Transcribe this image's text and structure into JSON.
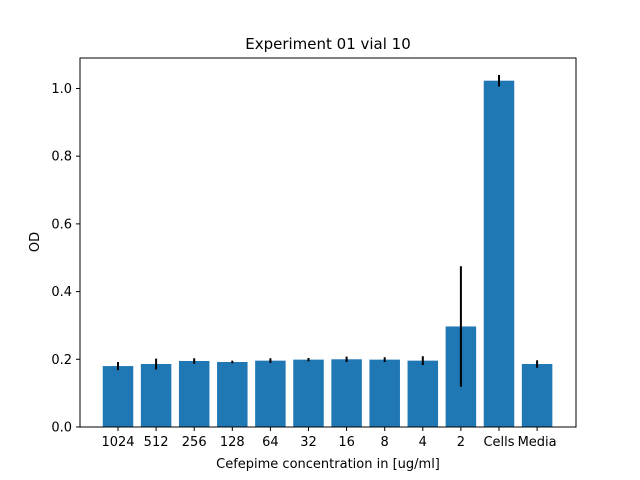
{
  "chart_data": {
    "type": "bar",
    "title": "Experiment 01 vial 10",
    "xlabel": "Cefepime concentration in [ug/ml]",
    "ylabel": "OD",
    "ylim": [
      0,
      1.09
    ],
    "yticks": [
      0.0,
      0.2,
      0.4,
      0.6,
      0.8,
      1.0
    ],
    "ytick_labels": [
      "0.0",
      "0.2",
      "0.4",
      "0.6",
      "0.8",
      "1.0"
    ],
    "categories": [
      "1024",
      "512",
      "256",
      "128",
      "64",
      "32",
      "16",
      "8",
      "4",
      "2",
      "Cells",
      "Media"
    ],
    "values": [
      0.18,
      0.186,
      0.195,
      0.192,
      0.196,
      0.199,
      0.2,
      0.199,
      0.196,
      0.297,
      1.023,
      0.186
    ],
    "errors": [
      0.012,
      0.016,
      0.008,
      0.004,
      0.007,
      0.005,
      0.008,
      0.007,
      0.013,
      0.178,
      0.017,
      0.011
    ],
    "bar_color": "#1f77b4",
    "error_color": "#000000",
    "grid": false,
    "legend": "none"
  }
}
